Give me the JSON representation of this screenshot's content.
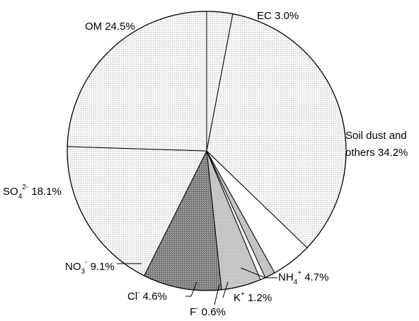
{
  "chart_data": {
    "type": "pie",
    "start": "twelve o'clock, clockwise",
    "slices": [
      {
        "label": "EC",
        "value": 3.0,
        "pattern": "fine-dots"
      },
      {
        "label": "Soil dust and others",
        "value": 34.2,
        "pattern": "fine-dots"
      },
      {
        "label": "NH4+",
        "value": 4.7,
        "pattern": "white"
      },
      {
        "label": "K+",
        "value": 1.2,
        "pattern": "light-gray"
      },
      {
        "label": "F-",
        "value": 0.6,
        "pattern": "white"
      },
      {
        "label": "Cl-",
        "value": 4.6,
        "pattern": "light-gray"
      },
      {
        "label": "NO3-",
        "value": 9.1,
        "pattern": "dark-crosshatch"
      },
      {
        "label": "SO42-",
        "value": 18.1,
        "pattern": "fine-dots"
      },
      {
        "label": "OM",
        "value": 24.5,
        "pattern": "fine-dots"
      }
    ],
    "labels": {
      "om": "OM 24.5%",
      "ec": "EC 3.0%",
      "soil_line1": "Soil dust and",
      "soil_line2": "others 34.2%",
      "so4_base": "SO",
      "so4_sub": "4",
      "so4_sup": "2-",
      "so4_val": " 18.1%",
      "no3_base": "NO",
      "no3_sub": "3",
      "no3_sup": "-",
      "no3_val": " 9.1%",
      "cl_base": "Cl",
      "cl_sup": "-",
      "cl_val": " 4.6%",
      "f_base": "F",
      "f_sup": "-",
      "f_val": " 0.6%",
      "k_base": "K",
      "k_sup": "+",
      "k_val": " 1.2%",
      "nh4_base": "NH",
      "nh4_sub": "4",
      "nh4_sup": "+",
      "nh4_val": " 4.7%"
    }
  }
}
